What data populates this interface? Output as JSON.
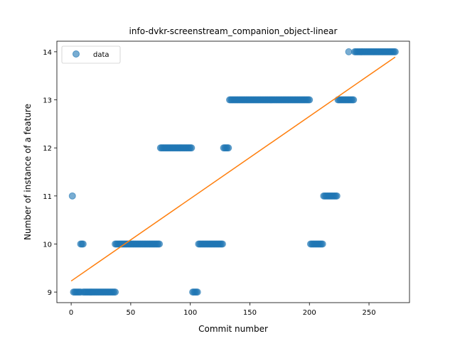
{
  "chart_data": {
    "type": "scatter",
    "title": "info-dvkr-screenstream_companion_object-linear",
    "xlabel": "Commit number",
    "ylabel": "Number of instance of a feature",
    "xlim": [
      -12,
      284
    ],
    "ylim": [
      8.78,
      14.22
    ],
    "xticks": [
      0,
      50,
      100,
      150,
      200,
      250
    ],
    "yticks": [
      9,
      10,
      11,
      12,
      13,
      14
    ],
    "grid": false,
    "legend": {
      "position": "top-left",
      "entries": [
        "data"
      ]
    },
    "colors": {
      "points": "#1f77b4",
      "line": "#ff7f0e"
    },
    "series": [
      {
        "name": "data",
        "kind": "points",
        "segments": [
          {
            "x_start": 1,
            "x_end": 1,
            "y": 11
          },
          {
            "x_start": 2,
            "x_end": 8,
            "y": 9
          },
          {
            "x_start": 8,
            "x_end": 10,
            "y": 10
          },
          {
            "x_start": 10,
            "x_end": 37,
            "y": 9
          },
          {
            "x_start": 37,
            "x_end": 74,
            "y": 10
          },
          {
            "x_start": 75,
            "x_end": 101,
            "y": 12
          },
          {
            "x_start": 102,
            "x_end": 106,
            "y": 9
          },
          {
            "x_start": 107,
            "x_end": 127,
            "y": 10
          },
          {
            "x_start": 128,
            "x_end": 132,
            "y": 12
          },
          {
            "x_start": 133,
            "x_end": 200,
            "y": 13
          },
          {
            "x_start": 201,
            "x_end": 211,
            "y": 10
          },
          {
            "x_start": 212,
            "x_end": 223,
            "y": 11
          },
          {
            "x_start": 224,
            "x_end": 237,
            "y": 13
          },
          {
            "x_start": 233,
            "x_end": 233,
            "y": 14
          },
          {
            "x_start": 238,
            "x_end": 272,
            "y": 14
          }
        ]
      },
      {
        "name": "",
        "kind": "line",
        "x": [
          0,
          272
        ],
        "y": [
          9.23,
          13.89
        ]
      }
    ]
  }
}
